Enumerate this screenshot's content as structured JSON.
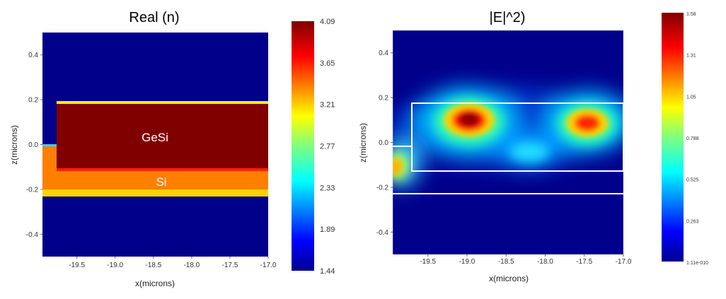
{
  "chart_data": [
    {
      "type": "heatmap",
      "title": "Real (n)",
      "xlabel": "x(microns)",
      "ylabel": "z(microns)",
      "xlim": [
        -19.95,
        -17.0
      ],
      "ylim": [
        -0.5,
        0.5
      ],
      "x_ticks": [
        "-19.5",
        "-19.0",
        "-18.5",
        "-18.0",
        "-17.5",
        "-17.0"
      ],
      "y_ticks": [
        "0.4",
        "0.2",
        "0.0",
        "-0.2",
        "-0.4"
      ],
      "colorbar": {
        "min": 1.44,
        "max": 4.09,
        "ticks": [
          "4.09",
          "3.65",
          "3.21",
          "2.77",
          "2.33",
          "1.89",
          "1.44"
        ]
      },
      "regions": [
        {
          "label": "GeSi",
          "x": [
            -19.75,
            -17.0
          ],
          "z": [
            -0.11,
            0.19
          ],
          "value": 4.09
        },
        {
          "label": "Si",
          "x": [
            -19.95,
            -17.0
          ],
          "z": [
            -0.22,
            0.0
          ],
          "value": 3.48
        }
      ]
    },
    {
      "type": "heatmap",
      "title": "|E|^2)",
      "xlabel": "x(microns)",
      "ylabel": "z(microns)",
      "xlim": [
        -19.95,
        -17.0
      ],
      "ylim": [
        -0.5,
        0.5
      ],
      "x_ticks": [
        "-19.5",
        "-19.0",
        "-18.5",
        "-18.0",
        "-17.5",
        "-17.0"
      ],
      "y_ticks": [
        "0.4",
        "0.2",
        "0.0",
        "-0.2",
        "-0.4"
      ],
      "colorbar": {
        "min": 0,
        "max": 1.58,
        "ticks": [
          "1.58",
          "1.31",
          "1.05",
          "0.788",
          "0.525",
          "0.263",
          "1.11e-010"
        ]
      },
      "hotspots": [
        {
          "x": -19.05,
          "z": 0.1,
          "value": 1.58
        },
        {
          "x": -17.42,
          "z": 0.09,
          "value": 1.4
        },
        {
          "x": -19.92,
          "z": -0.1,
          "value": 1.0
        }
      ]
    }
  ]
}
